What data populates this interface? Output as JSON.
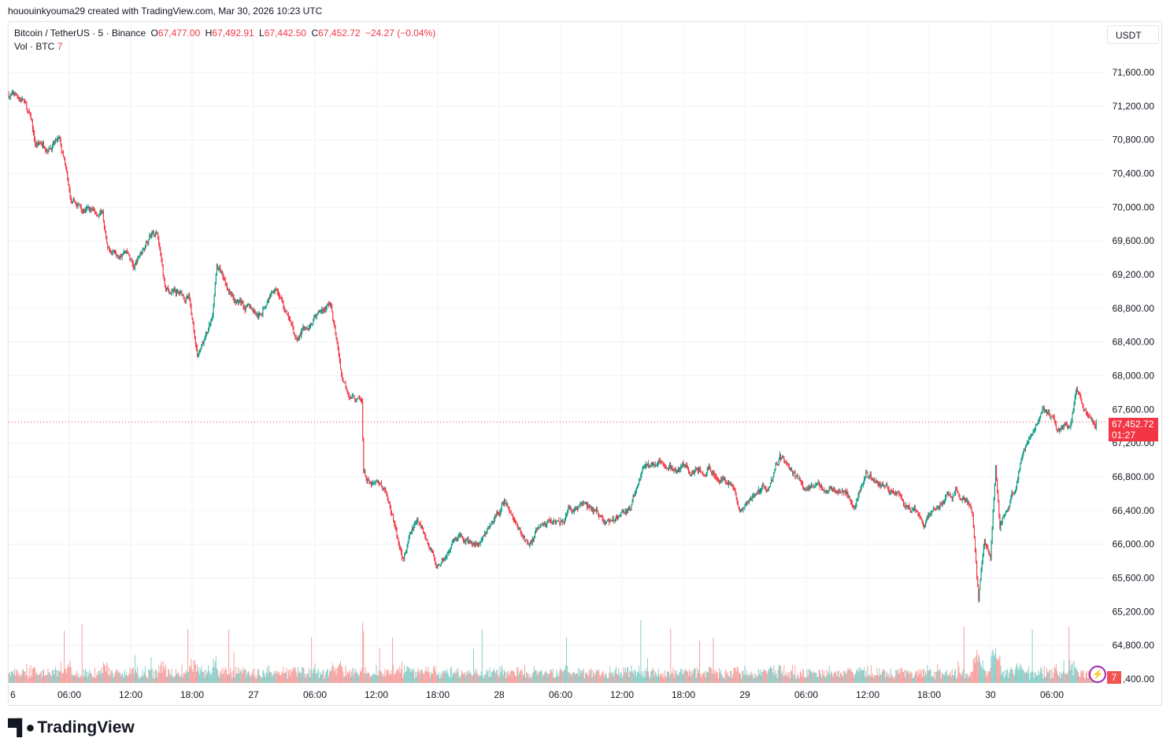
{
  "credit": "hououinkyouma29 created with TradingView.com, Mar 30, 2026 10:23 UTC",
  "legend": {
    "symbol": "Bitcoin / TetherUS · 5 · Binance",
    "o_label": "O",
    "o": "67,477.00",
    "h_label": "H",
    "h": "67,492.91",
    "l_label": "L",
    "l": "67,442.50",
    "c_label": "C",
    "c": "67,452.72",
    "change": "−24.27 (−0.04%)",
    "vol_label": "Vol · BTC",
    "vol": "7"
  },
  "currency_button": "USDT",
  "current_price": {
    "price": "67,452.72",
    "countdown": "01:27",
    "value": 67452.72
  },
  "volume_badge": "7",
  "alert_icon": "lightning-bolt-icon",
  "logo_text": "TradingView",
  "colors": {
    "up": "#089981",
    "down": "#f23645",
    "vol_up": "#26a69a",
    "vol_down": "#ef5350",
    "grid": "#f0f3fa"
  },
  "chart_data": {
    "type": "candlestick",
    "interval": "5",
    "y_range": [
      64320,
      71900
    ],
    "y_ticks": [
      "71,600.00",
      "71,200.00",
      "70,800.00",
      "70,400.00",
      "70,000.00",
      "69,600.00",
      "69,200.00",
      "68,800.00",
      "68,400.00",
      "68,000.00",
      "67,600.00",
      "67,200.00",
      "66,800.00",
      "66,400.00",
      "66,000.00",
      "65,600.00",
      "65,200.00",
      "64,800.00",
      ",400.00"
    ],
    "y_tick_values": [
      71600,
      71200,
      70800,
      70400,
      70000,
      69600,
      69200,
      68800,
      68400,
      68000,
      67600,
      67200,
      66800,
      66400,
      66000,
      65600,
      65200,
      64800,
      64400
    ],
    "x_ticks": [
      {
        "label": "6",
        "time": "26 00:00"
      },
      {
        "label": "06:00",
        "time": "26 06:00"
      },
      {
        "label": "12:00",
        "time": "26 12:00"
      },
      {
        "label": "18:00",
        "time": "26 18:00"
      },
      {
        "label": "27",
        "time": "27 00:00"
      },
      {
        "label": "06:00",
        "time": "27 06:00"
      },
      {
        "label": "12:00",
        "time": "27 12:00"
      },
      {
        "label": "18:00",
        "time": "27 18:00"
      },
      {
        "label": "28",
        "time": "28 00:00"
      },
      {
        "label": "06:00",
        "time": "28 06:00"
      },
      {
        "label": "12:00",
        "time": "28 12:00"
      },
      {
        "label": "18:00",
        "time": "28 18:00"
      },
      {
        "label": "29",
        "time": "29 00:00"
      },
      {
        "label": "06:00",
        "time": "29 06:00"
      },
      {
        "label": "12:00",
        "time": "29 12:00"
      },
      {
        "label": "18:00",
        "time": "29 18:00"
      },
      {
        "label": "30",
        "time": "30 00:00"
      },
      {
        "label": "06:00",
        "time": "30 06:00"
      }
    ],
    "price_path": [
      [
        "26 00:00",
        71340
      ],
      [
        "26 01:30",
        71290
      ],
      [
        "26 02:20",
        70970
      ],
      [
        "26 02:40",
        70730
      ],
      [
        "26 05:00",
        70780
      ],
      [
        "26 05:30",
        70500
      ],
      [
        "26 06:10",
        70030
      ],
      [
        "26 08:30",
        69940
      ],
      [
        "26 09:15",
        69940
      ],
      [
        "26 09:45",
        69470
      ],
      [
        "26 11:30",
        69560
      ],
      [
        "26 12:20",
        69280
      ],
      [
        "26 13:50",
        69660
      ],
      [
        "26 14:35",
        69660
      ],
      [
        "26 15:25",
        69000
      ],
      [
        "26 17:40",
        68910
      ],
      [
        "26 18:30",
        68260
      ],
      [
        "26 20:00",
        68630
      ],
      [
        "26 20:25",
        69280
      ],
      [
        "26 22:20",
        68910
      ],
      [
        "27 00:35",
        68720
      ],
      [
        "27 02:10",
        69100
      ],
      [
        "27 04:05",
        68440
      ],
      [
        "27 06:00",
        68720
      ],
      [
        "27 07:30",
        68860
      ],
      [
        "27 08:40",
        67980
      ],
      [
        "27 09:30",
        67790
      ],
      [
        "27 10:35",
        67650
      ],
      [
        "27 10:45",
        66860
      ],
      [
        "27 11:25",
        66670
      ],
      [
        "27 12:55",
        66670
      ],
      [
        "27 14:30",
        65830
      ],
      [
        "27 16:00",
        66300
      ],
      [
        "27 17:55",
        65740
      ],
      [
        "27 19:50",
        66020
      ],
      [
        "27 22:10",
        66020
      ],
      [
        "28 00:30",
        66480
      ],
      [
        "28 02:45",
        66020
      ],
      [
        "28 05:05",
        66300
      ],
      [
        "28 08:10",
        66480
      ],
      [
        "28 10:30",
        66250
      ],
      [
        "28 12:45",
        66390
      ],
      [
        "28 13:55",
        66860
      ],
      [
        "28 15:50",
        67040
      ],
      [
        "28 17:25",
        66860
      ],
      [
        "28 20:30",
        66950
      ],
      [
        "28 22:45",
        66670
      ],
      [
        "28 23:30",
        66390
      ],
      [
        "29 02:40",
        66760
      ],
      [
        "29 03:25",
        67040
      ],
      [
        "29 05:40",
        66670
      ],
      [
        "29 08:45",
        66670
      ],
      [
        "29 10:40",
        66480
      ],
      [
        "29 11:50",
        66860
      ],
      [
        "29 13:25",
        66670
      ],
      [
        "29 15:40",
        66480
      ],
      [
        "29 17:35",
        66250
      ],
      [
        "29 18:45",
        66430
      ],
      [
        "29 20:40",
        66620
      ],
      [
        "29 22:15",
        66390
      ],
      [
        "29 22:50",
        65360
      ],
      [
        "29 23:25",
        66020
      ],
      [
        "30 00:00",
        65830
      ],
      [
        "30 00:30",
        66950
      ],
      [
        "30 00:55",
        66250
      ],
      [
        "30 02:30",
        66670
      ],
      [
        "30 03:15",
        67140
      ],
      [
        "30 05:10",
        67700
      ],
      [
        "30 06:40",
        67320
      ],
      [
        "30 07:50",
        67420
      ],
      [
        "30 08:25",
        67880
      ],
      [
        "30 09:20",
        67600
      ],
      [
        "30 10:20",
        67452.72
      ]
    ]
  }
}
